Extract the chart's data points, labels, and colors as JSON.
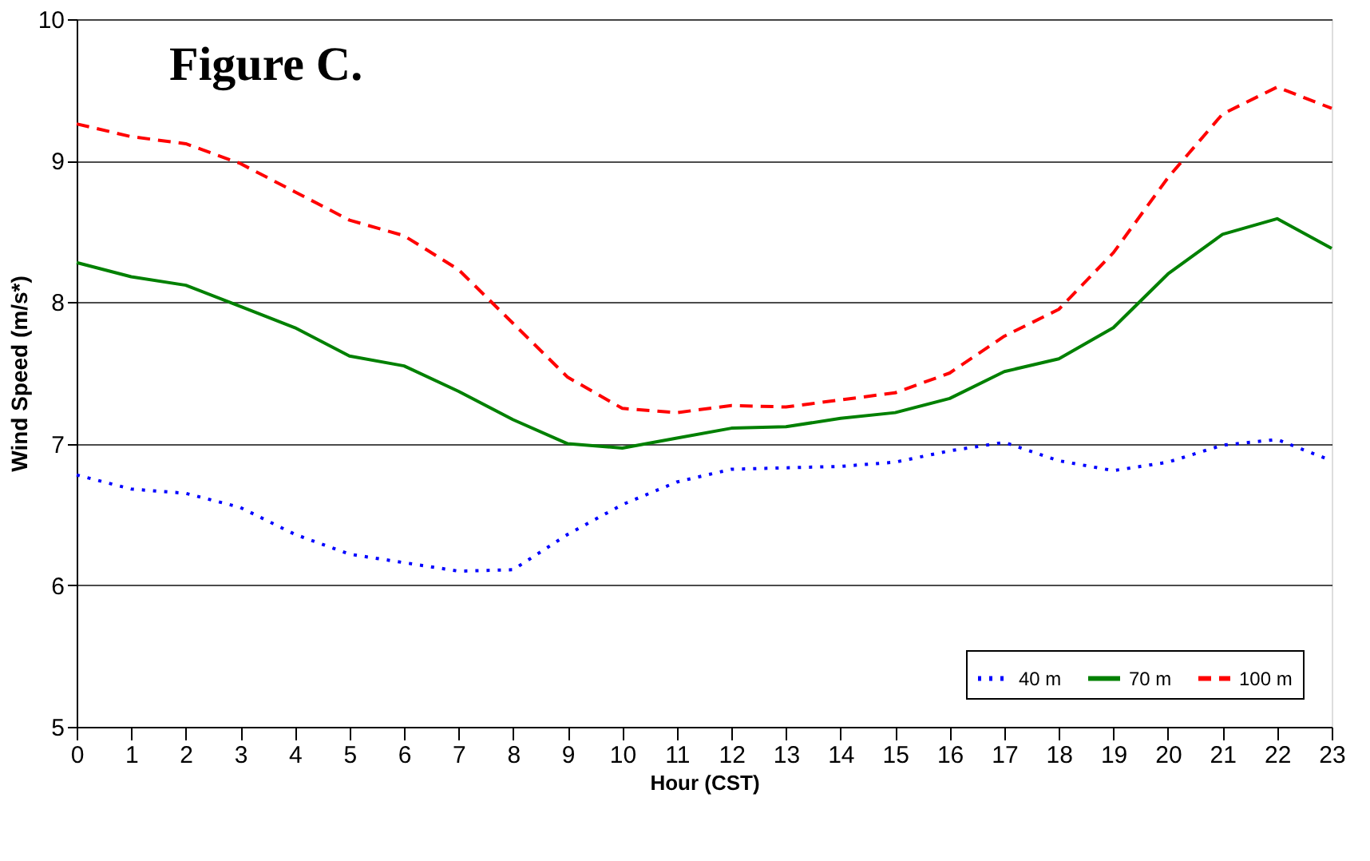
{
  "chart_data": {
    "type": "line",
    "xlabel": "Hour (CST)",
    "ylabel": "Wind Speed (m/s*)",
    "annotations": [
      "Figure C."
    ],
    "x": [
      0,
      1,
      2,
      3,
      4,
      5,
      6,
      7,
      8,
      9,
      10,
      11,
      12,
      13,
      14,
      15,
      16,
      17,
      18,
      19,
      20,
      21,
      22,
      23
    ],
    "series": [
      {
        "name": "40 m",
        "color": "#0000ff",
        "line_style": "dotted",
        "values": [
          6.78,
          6.68,
          6.65,
          6.55,
          6.36,
          6.22,
          6.16,
          6.1,
          6.11,
          6.36,
          6.57,
          6.73,
          6.82,
          6.83,
          6.84,
          6.87,
          6.95,
          7.01,
          6.88,
          6.81,
          6.87,
          6.99,
          7.03,
          6.88
        ]
      },
      {
        "name": "70 m",
        "color": "#008000",
        "line_style": "solid",
        "values": [
          8.28,
          8.18,
          8.12,
          7.97,
          7.82,
          7.62,
          7.55,
          7.37,
          7.17,
          7.0,
          6.97,
          7.04,
          7.11,
          7.12,
          7.18,
          7.22,
          7.32,
          7.51,
          7.6,
          7.82,
          8.2,
          8.48,
          8.59,
          8.38
        ]
      },
      {
        "name": "100 m",
        "color": "#ff0000",
        "line_style": "dashed",
        "values": [
          9.26,
          9.17,
          9.12,
          8.98,
          8.78,
          8.58,
          8.47,
          8.23,
          7.85,
          7.47,
          7.25,
          7.22,
          7.27,
          7.26,
          7.31,
          7.36,
          7.5,
          7.76,
          7.95,
          8.35,
          8.88,
          9.33,
          9.52,
          9.37
        ]
      }
    ],
    "xlim": [
      0,
      23
    ],
    "xticks": [
      0,
      1,
      2,
      3,
      4,
      5,
      6,
      7,
      8,
      9,
      10,
      11,
      12,
      13,
      14,
      15,
      16,
      17,
      18,
      19,
      20,
      21,
      22,
      23
    ],
    "ylim": [
      5,
      10
    ],
    "yticks": [
      5,
      6,
      7,
      8,
      9,
      10
    ],
    "grid": "y",
    "legend": "bottom right",
    "marker": "none"
  }
}
